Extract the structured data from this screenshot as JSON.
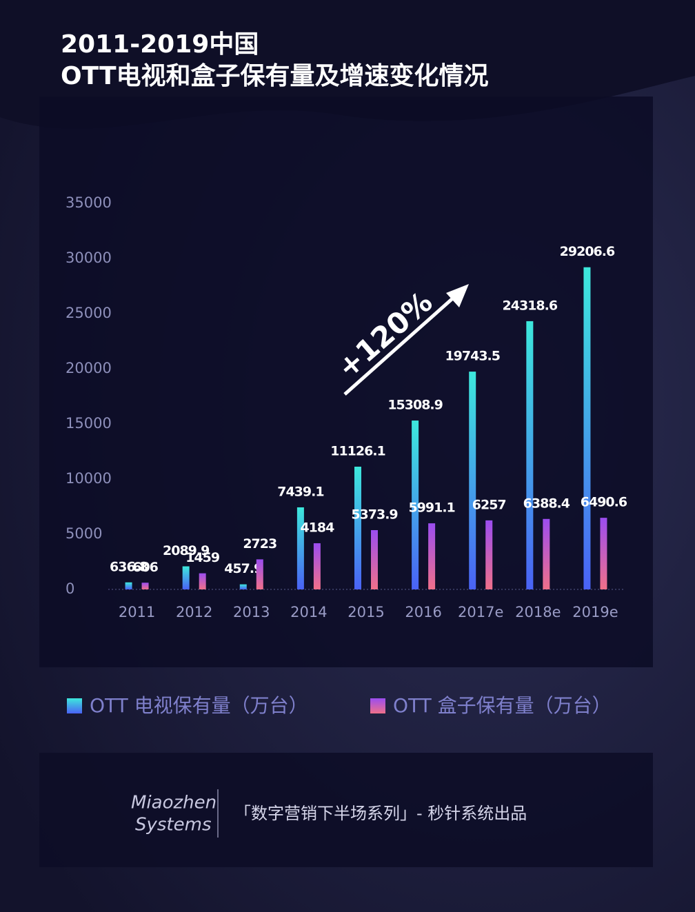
{
  "chart_data": {
    "type": "bar",
    "title": [
      "2011-2019中国",
      "OTT电视和盒子保有量及增速变化情况"
    ],
    "categories": [
      "2011",
      "2012",
      "2013",
      "2014",
      "2015",
      "2016",
      "2017e",
      "2018e",
      "2019e"
    ],
    "series": [
      {
        "name": "OTT 电视保有量（万台）",
        "color": "#3de8dc",
        "values": [
          636.8,
          2089.9,
          457.9,
          7439.1,
          11126.1,
          15308.9,
          19743.5,
          24318.6,
          29206.6
        ]
      },
      {
        "name": "OTT 盒子保有量（万台）",
        "color": "#9b4df0",
        "values": [
          606,
          1459,
          2723,
          4184,
          5373.9,
          5991.1,
          6257,
          6388.4,
          6490.6
        ]
      }
    ],
    "ylim": [
      0,
      35000
    ],
    "yticks": [
      0,
      5000,
      10000,
      15000,
      20000,
      25000,
      30000,
      35000
    ],
    "grid": false,
    "annotation": "+120%"
  },
  "footer": {
    "logo": [
      "Miaozhen",
      "Systems"
    ],
    "text": "「数字营销下半场系列」- 秒针系统出品"
  }
}
